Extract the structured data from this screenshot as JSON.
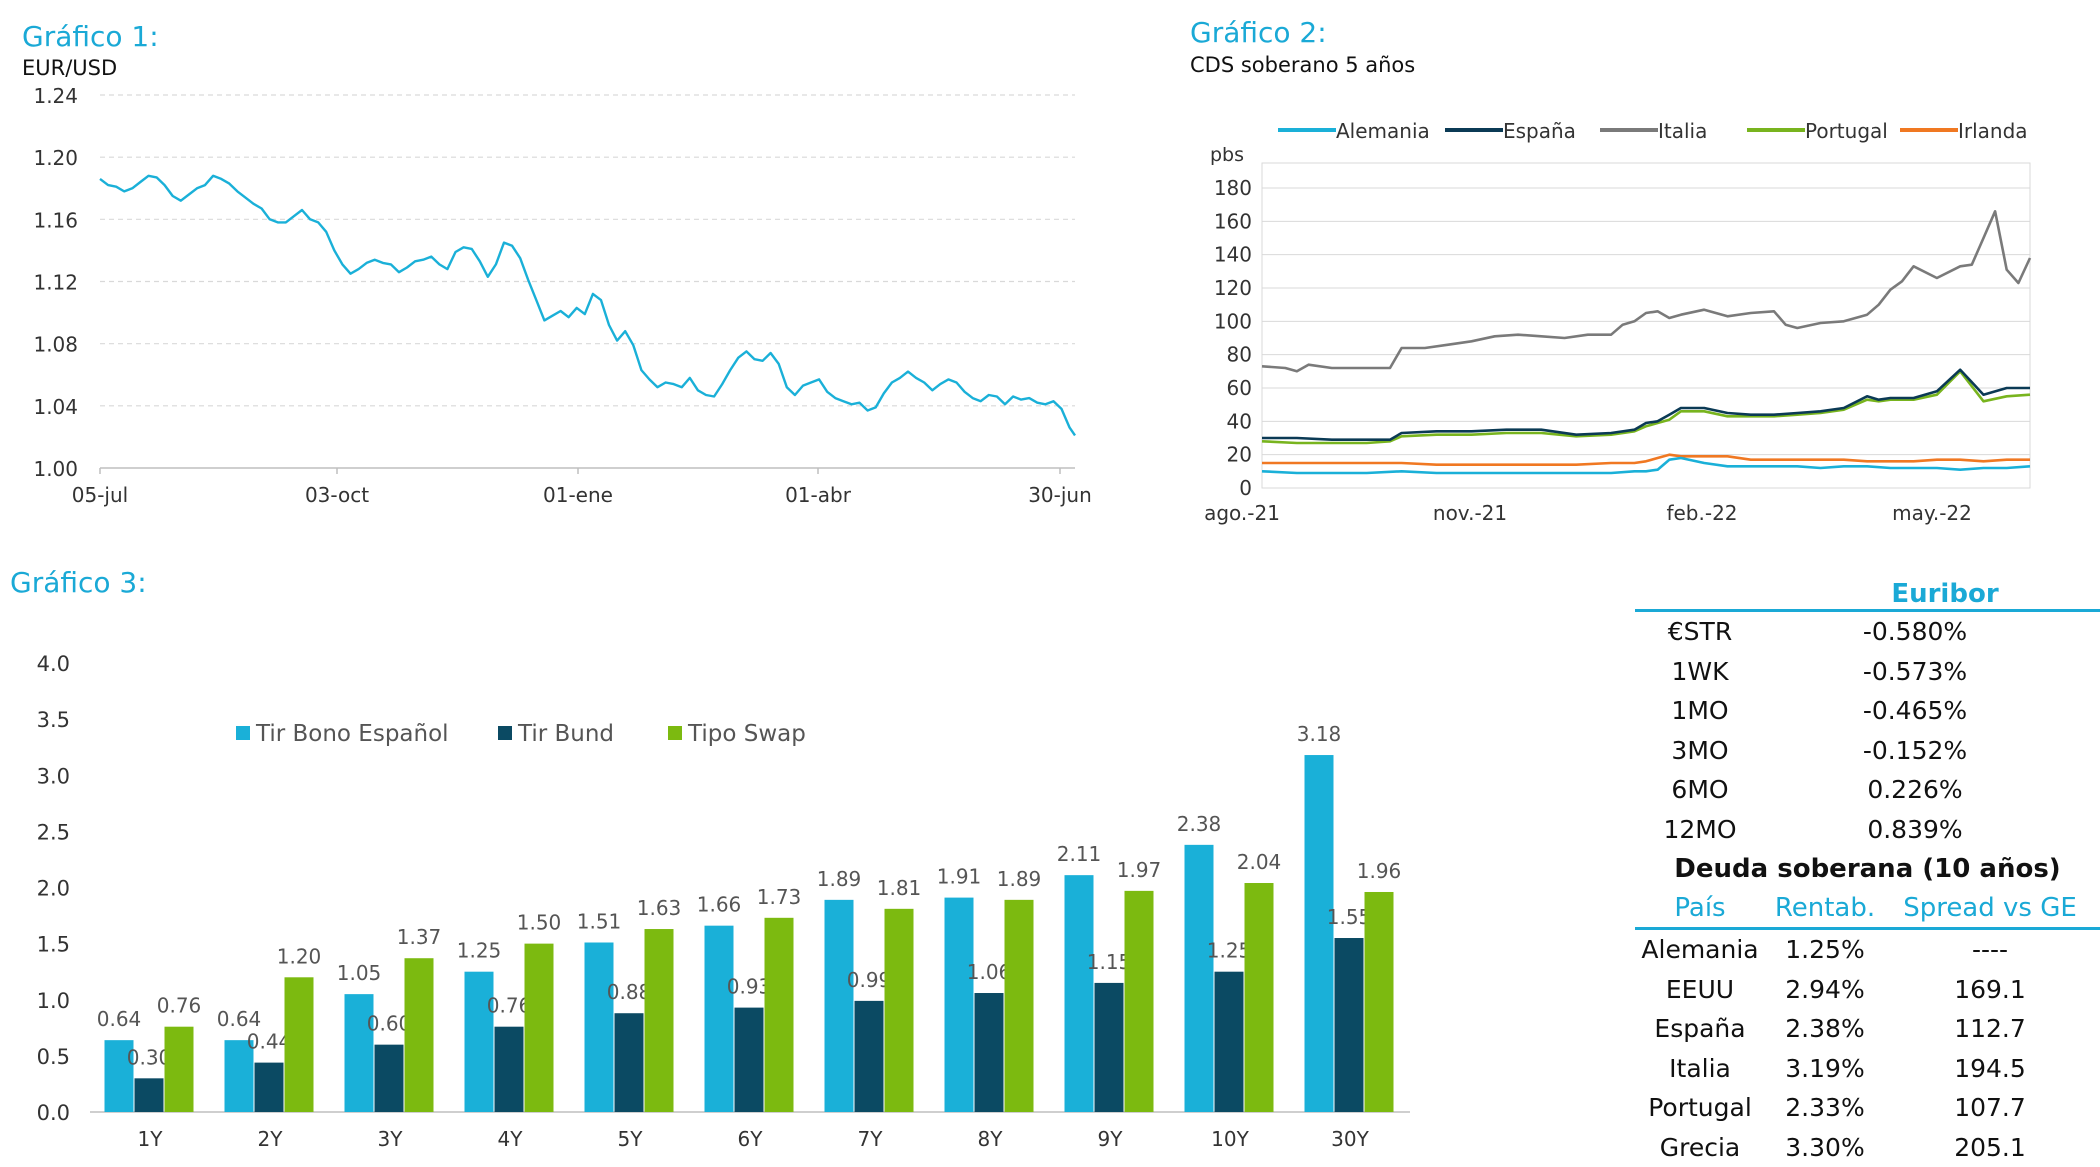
{
  "chart1": {
    "title": "Gráfico 1:",
    "subtitle": "EUR/USD",
    "chart_data": {
      "type": "line",
      "title": "EUR/USD",
      "ylim": [
        1.0,
        1.24
      ],
      "yticks": [
        "1.24",
        "1.20",
        "1.16",
        "1.12",
        "1.08",
        "1.04",
        "1.00"
      ],
      "xticks": [
        "05-jul",
        "03-oct",
        "01-ene",
        "01-abr",
        "30-jun"
      ],
      "color": "#1ab0d8",
      "grid": true,
      "series": [
        {
          "name": "EUR/USD",
          "x": [
            0,
            3,
            6,
            9,
            12,
            15,
            18,
            21,
            24,
            27,
            30,
            33,
            36,
            39,
            42,
            45,
            48,
            51,
            54,
            57,
            60,
            63,
            66,
            69,
            72,
            75,
            78,
            81,
            84,
            87,
            90,
            93,
            96,
            99,
            102,
            105,
            108,
            111,
            114,
            117,
            120,
            123,
            126,
            129,
            132,
            135,
            138,
            141,
            144,
            147,
            150,
            153,
            156,
            159,
            162,
            165,
            168,
            171,
            174,
            177,
            180,
            183,
            186,
            189,
            192,
            195,
            198,
            201,
            204,
            207,
            210,
            213,
            216,
            219,
            222,
            225,
            228,
            231,
            234,
            237,
            240,
            243,
            246,
            249,
            252,
            255,
            258,
            261,
            264,
            267,
            270,
            273,
            276,
            279,
            282,
            285,
            288,
            291,
            294,
            297,
            300,
            303,
            306,
            309,
            312,
            315,
            318,
            321,
            324,
            327,
            330,
            333,
            336,
            339,
            342,
            345,
            348,
            351,
            354,
            357,
            360,
            362
          ],
          "values": [
            1.186,
            1.182,
            1.181,
            1.178,
            1.18,
            1.184,
            1.188,
            1.187,
            1.182,
            1.175,
            1.172,
            1.176,
            1.18,
            1.182,
            1.188,
            1.186,
            1.183,
            1.178,
            1.174,
            1.17,
            1.167,
            1.16,
            1.158,
            1.158,
            1.162,
            1.166,
            1.16,
            1.158,
            1.152,
            1.14,
            1.131,
            1.125,
            1.128,
            1.132,
            1.134,
            1.132,
            1.131,
            1.126,
            1.129,
            1.133,
            1.134,
            1.136,
            1.131,
            1.128,
            1.139,
            1.142,
            1.141,
            1.133,
            1.123,
            1.131,
            1.145,
            1.143,
            1.135,
            1.121,
            1.108,
            1.095,
            1.098,
            1.101,
            1.097,
            1.103,
            1.099,
            1.112,
            1.108,
            1.092,
            1.082,
            1.088,
            1.079,
            1.063,
            1.057,
            1.052,
            1.055,
            1.054,
            1.052,
            1.058,
            1.05,
            1.047,
            1.046,
            1.054,
            1.063,
            1.071,
            1.075,
            1.07,
            1.069,
            1.074,
            1.067,
            1.052,
            1.047,
            1.053,
            1.055,
            1.057,
            1.049,
            1.045,
            1.043,
            1.041,
            1.042,
            1.037,
            1.039,
            1.048,
            1.055,
            1.058,
            1.062,
            1.058,
            1.055,
            1.05,
            1.054,
            1.057,
            1.055,
            1.049,
            1.045,
            1.043,
            1.047,
            1.046,
            1.041,
            1.046,
            1.044,
            1.045,
            1.042,
            1.041,
            1.043,
            1.038,
            1.026,
            1.021
          ]
        }
      ]
    }
  },
  "chart2": {
    "title": "Gráfico 2:",
    "subtitle": "CDS soberano 5 años",
    "chart_data": {
      "type": "line",
      "title": "CDS soberano 5 años",
      "ylabel": "pbs",
      "ylim": [
        0,
        180
      ],
      "yticks": [
        "180",
        "160",
        "140",
        "120",
        "100",
        "80",
        "60",
        "40",
        "20",
        "0"
      ],
      "xticks": [
        "ago.-21",
        "nov.-21",
        "feb.-22",
        "may.-22"
      ],
      "legend_position": "top",
      "series": [
        {
          "name": "Alemania",
          "color": "#1ab0d8",
          "x": [
            0,
            15,
            30,
            45,
            60,
            75,
            90,
            105,
            120,
            135,
            150,
            160,
            165,
            170,
            175,
            180,
            190,
            200,
            210,
            220,
            230,
            240,
            250,
            260,
            270,
            280,
            290,
            300,
            310,
            320,
            330
          ],
          "values": [
            10,
            9,
            9,
            9,
            10,
            9,
            9,
            9,
            9,
            9,
            9,
            10,
            10,
            11,
            17,
            18,
            15,
            13,
            13,
            13,
            13,
            12,
            13,
            13,
            12,
            12,
            12,
            11,
            12,
            12,
            13
          ]
        },
        {
          "name": "España",
          "color": "#0b3a55",
          "x": [
            0,
            15,
            30,
            45,
            55,
            60,
            75,
            90,
            105,
            120,
            135,
            150,
            160,
            165,
            170,
            175,
            180,
            190,
            200,
            210,
            220,
            230,
            240,
            250,
            260,
            265,
            270,
            280,
            290,
            300,
            310,
            320,
            330
          ],
          "values": [
            30,
            30,
            29,
            29,
            29,
            33,
            34,
            34,
            35,
            35,
            32,
            33,
            35,
            39,
            40,
            44,
            48,
            48,
            45,
            44,
            44,
            45,
            46,
            48,
            55,
            53,
            54,
            54,
            58,
            71,
            56,
            60,
            60
          ]
        },
        {
          "name": "Italia",
          "color": "#7a7a7a",
          "x": [
            0,
            10,
            15,
            20,
            30,
            45,
            55,
            60,
            70,
            80,
            90,
            100,
            110,
            120,
            130,
            140,
            150,
            155,
            160,
            165,
            170,
            175,
            180,
            190,
            200,
            210,
            220,
            225,
            230,
            240,
            250,
            260,
            265,
            270,
            275,
            280,
            290,
            300,
            305,
            310,
            315,
            320,
            325,
            330
          ],
          "values": [
            73,
            72,
            70,
            74,
            72,
            72,
            72,
            84,
            84,
            86,
            88,
            91,
            92,
            91,
            90,
            92,
            92,
            98,
            100,
            105,
            106,
            102,
            104,
            107,
            103,
            105,
            106,
            98,
            96,
            99,
            100,
            104,
            110,
            119,
            124,
            133,
            126,
            133,
            134,
            150,
            166,
            131,
            123,
            138
          ]
        },
        {
          "name": "Portugal",
          "color": "#78b41e",
          "x": [
            0,
            15,
            30,
            45,
            55,
            60,
            75,
            90,
            105,
            120,
            135,
            150,
            160,
            165,
            170,
            175,
            180,
            190,
            200,
            210,
            220,
            230,
            240,
            250,
            260,
            265,
            270,
            280,
            290,
            300,
            310,
            320,
            330
          ],
          "values": [
            28,
            27,
            27,
            27,
            28,
            31,
            32,
            32,
            33,
            33,
            31,
            32,
            34,
            37,
            39,
            41,
            46,
            46,
            43,
            43,
            43,
            44,
            45,
            47,
            53,
            52,
            53,
            53,
            56,
            70,
            52,
            55,
            56
          ]
        },
        {
          "name": "Irlanda",
          "color": "#f07822",
          "x": [
            0,
            15,
            30,
            45,
            60,
            75,
            90,
            105,
            120,
            135,
            150,
            160,
            165,
            170,
            175,
            180,
            190,
            200,
            210,
            220,
            230,
            240,
            250,
            260,
            270,
            280,
            290,
            300,
            310,
            320,
            330
          ],
          "values": [
            15,
            15,
            15,
            15,
            15,
            14,
            14,
            14,
            14,
            14,
            15,
            15,
            16,
            18,
            20,
            19,
            19,
            19,
            17,
            17,
            17,
            17,
            17,
            16,
            16,
            16,
            17,
            17,
            16,
            17,
            17
          ]
        }
      ]
    }
  },
  "chart3": {
    "title": "Gráfico 3:",
    "chart_data": {
      "type": "bar",
      "ylim": [
        0,
        4.0
      ],
      "yticks": [
        "4.0",
        "3.5",
        "3.0",
        "2.5",
        "2.0",
        "1.5",
        "1.0",
        "0.5",
        "0.0"
      ],
      "categories": [
        "1Y",
        "2Y",
        "3Y",
        "4Y",
        "5Y",
        "6Y",
        "7Y",
        "8Y",
        "9Y",
        "10Y",
        "30Y"
      ],
      "legend_position": "top-left",
      "series": [
        {
          "name": "Tir Bono Español",
          "color": "#1ab0d8",
          "values": [
            0.64,
            0.64,
            1.05,
            1.25,
            1.51,
            1.66,
            1.89,
            1.91,
            2.11,
            2.38,
            3.18
          ],
          "labels": [
            "0.64",
            "0.64",
            "1.05",
            "1.25",
            "1.51",
            "1.66",
            "1.89",
            "1.91",
            "2.11",
            "2.38",
            "3.18"
          ]
        },
        {
          "name": "Tir Bund",
          "color": "#0b4a63",
          "values": [
            0.3,
            0.44,
            0.6,
            0.76,
            0.88,
            0.93,
            0.99,
            1.06,
            1.15,
            1.25,
            1.55
          ],
          "labels": [
            "0.30",
            "0.44",
            "0.60",
            "0.76",
            "0.88",
            "0.93",
            "0.99",
            "1.06",
            "1.15",
            "1.25",
            "1.55"
          ]
        },
        {
          "name": "Tipo Swap",
          "color": "#7cba10",
          "values": [
            0.76,
            1.2,
            1.37,
            1.5,
            1.63,
            1.73,
            1.81,
            1.89,
            1.97,
            2.04,
            1.96
          ],
          "labels": [
            "0.76",
            "1.20",
            "1.37",
            "1.50",
            "1.63",
            "1.73",
            "1.81",
            "1.89",
            "1.97",
            "2.04",
            "1.96"
          ]
        }
      ]
    }
  },
  "euribor": {
    "header": "Euribor",
    "rows": [
      {
        "label": "€STR",
        "value": "-0.580%"
      },
      {
        "label": "1WK",
        "value": "-0.573%"
      },
      {
        "label": "1MO",
        "value": "-0.465%"
      },
      {
        "label": "3MO",
        "value": "-0.152%"
      },
      {
        "label": "6MO",
        "value": "0.226%"
      },
      {
        "label": "12MO",
        "value": "0.839%"
      }
    ]
  },
  "sovereign": {
    "title": "Deuda soberana (10 años)",
    "headers": [
      "País",
      "Rentab.",
      "Spread vs GE"
    ],
    "rows": [
      {
        "country": "Alemania",
        "yield": "1.25%",
        "spread": "----"
      },
      {
        "country": "EEUU",
        "yield": "2.94%",
        "spread": "169.1"
      },
      {
        "country": "España",
        "yield": "2.38%",
        "spread": "112.7"
      },
      {
        "country": "Italia",
        "yield": "3.19%",
        "spread": "194.5"
      },
      {
        "country": "Portugal",
        "yield": "2.33%",
        "spread": "107.7"
      },
      {
        "country": "Grecia",
        "yield": "3.30%",
        "spread": "205.1"
      }
    ]
  }
}
